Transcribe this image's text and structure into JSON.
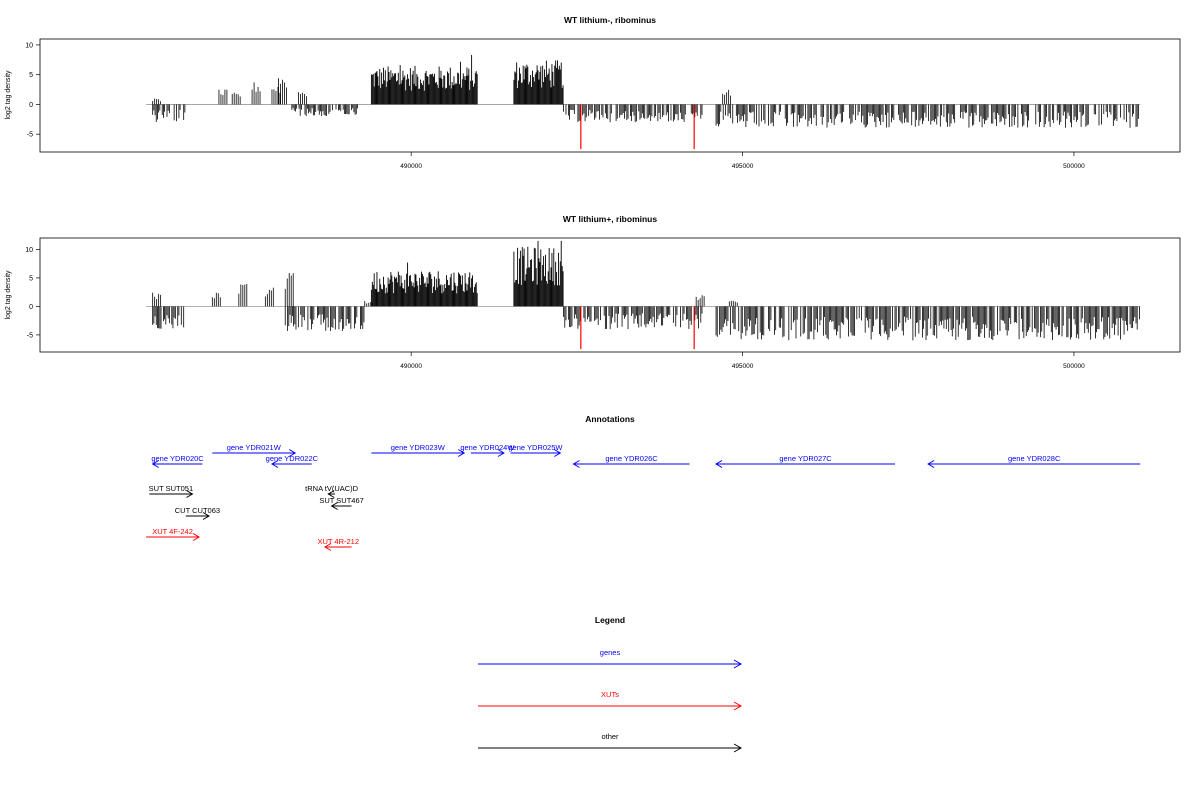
{
  "chart_data": [
    {
      "type": "bar",
      "title": "WT lithium-, ribominus",
      "xlabel": "",
      "ylabel": "log2 tag density",
      "xlim": [
        484400,
        501600
      ],
      "ylim": [
        -8,
        11
      ],
      "yticks": [
        10,
        5,
        0,
        -5
      ],
      "xticks": [
        490000,
        495000,
        500000
      ],
      "xtick_labels": [
        "490000",
        "495000",
        "500000"
      ],
      "gaps": [
        [
          491050,
          491500
        ]
      ],
      "dense_positive_regions": [
        [
          489400,
          491000,
          6.5
        ],
        [
          491550,
          492300,
          7.5
        ]
      ],
      "sparse_positive_bars": [
        [
          486100,
          1.0
        ],
        [
          487100,
          2.5
        ],
        [
          487300,
          2.0
        ],
        [
          487600,
          3.8
        ],
        [
          487900,
          3.5
        ],
        [
          488000,
          5.2
        ],
        [
          488300,
          2.5
        ],
        [
          494700,
          2.5
        ]
      ],
      "negative_regions": [
        [
          486100,
          486600,
          -3.0
        ],
        [
          488200,
          489200,
          -2.0
        ],
        [
          492300,
          494400,
          -3.0
        ],
        [
          494600,
          501000,
          -4.0
        ]
      ],
      "highlight_bars": [
        {
          "x": 492560,
          "y": -7.5,
          "color": "#ff0000"
        },
        {
          "x": 494270,
          "y": -7.5,
          "color": "#ff0000"
        }
      ]
    },
    {
      "type": "bar",
      "title": "WT lithium+, ribominus",
      "xlabel": "",
      "ylabel": "log2 tag density",
      "xlim": [
        484400,
        501600
      ],
      "ylim": [
        -8,
        12
      ],
      "yticks": [
        10,
        5,
        0,
        -5
      ],
      "xticks": [
        490000,
        495000,
        500000
      ],
      "xtick_labels": [
        "490000",
        "495000",
        "500000"
      ],
      "gaps": [
        [
          491050,
          491500
        ]
      ],
      "dense_positive_regions": [
        [
          489400,
          491000,
          6.5
        ],
        [
          491550,
          492300,
          10.5
        ]
      ],
      "sparse_positive_bars": [
        [
          486100,
          2.5
        ],
        [
          487000,
          2.5
        ],
        [
          487400,
          4.0
        ],
        [
          487800,
          3.5
        ],
        [
          488100,
          6.0
        ],
        [
          489300,
          1.0
        ],
        [
          494300,
          2.0
        ],
        [
          494800,
          1.0
        ]
      ],
      "negative_regions": [
        [
          486100,
          486600,
          -4.0
        ],
        [
          488100,
          489300,
          -4.5
        ],
        [
          492300,
          494400,
          -4.0
        ],
        [
          494600,
          501000,
          -6.0
        ]
      ],
      "highlight_bars": [
        {
          "x": 492560,
          "y": -7.5,
          "color": "#ff0000"
        },
        {
          "x": 494270,
          "y": -7.5,
          "color": "#ff0000"
        }
      ]
    }
  ],
  "annotations": {
    "title": "Annotations",
    "features": [
      {
        "label": "gene YDR020C",
        "start": 486850,
        "end": 486100,
        "color": "#0000ff",
        "row": 1
      },
      {
        "label": "gene YDR021W",
        "start": 487000,
        "end": 488250,
        "color": "#0000ff",
        "row": 0
      },
      {
        "label": "gene YDR022C",
        "start": 488500,
        "end": 487900,
        "color": "#0000ff",
        "row": 1
      },
      {
        "label": "gene YDR023W",
        "start": 489400,
        "end": 490800,
        "color": "#0000ff",
        "row": 0
      },
      {
        "label": "gene YDR024W",
        "start": 490900,
        "end": 491400,
        "color": "#0000ff",
        "row": 0
      },
      {
        "label": "gene YDR025W",
        "start": 491500,
        "end": 492250,
        "color": "#0000ff",
        "row": 0
      },
      {
        "label": "gene YDR026C",
        "start": 494200,
        "end": 492450,
        "color": "#0000ff",
        "row": 1
      },
      {
        "label": "gene YDR027C",
        "start": 497300,
        "end": 494600,
        "color": "#0000ff",
        "row": 1
      },
      {
        "label": "gene YDR028C",
        "start": 501000,
        "end": 497800,
        "color": "#0000ff",
        "row": 1
      },
      {
        "label": "SUT SUT051",
        "start": 486050,
        "end": 486700,
        "color": "#000000",
        "row": 2
      },
      {
        "label": "tRNA tV(UAC)D",
        "start": 488850,
        "end": 488750,
        "color": "#000000",
        "row": 2
      },
      {
        "label": "SUT SUT467",
        "start": 489100,
        "end": 488800,
        "color": "#000000",
        "row": 3
      },
      {
        "label": "CUT CUT063",
        "start": 486600,
        "end": 486950,
        "color": "#000000",
        "row": 4
      },
      {
        "label": "XUT 4F-242",
        "start": 486000,
        "end": 486800,
        "color": "#ff0000",
        "row": 5
      },
      {
        "label": "XUT 4R-212",
        "start": 489100,
        "end": 488700,
        "color": "#ff0000",
        "row": 6
      }
    ]
  },
  "legend": {
    "title": "Legend",
    "items": [
      {
        "label": "genes",
        "color": "#0000ff"
      },
      {
        "label": "XUTs",
        "color": "#ff0000"
      },
      {
        "label": "other",
        "color": "#000000"
      }
    ]
  }
}
